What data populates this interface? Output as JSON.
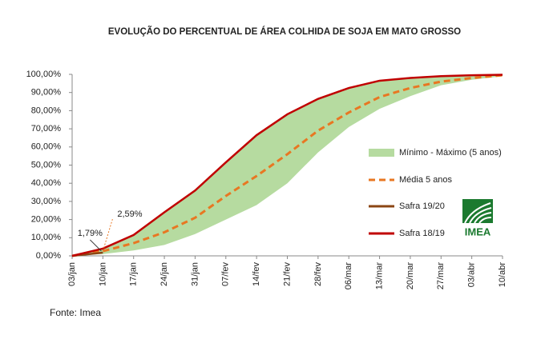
{
  "chart_data": {
    "type": "line",
    "title": "EVOLUÇÃO DO PERCENTUAL DE ÁREA COLHIDA DE SOJA EM MATO GROSSO",
    "source": "Fonte: Imea",
    "logo": "IMEA",
    "categories": [
      "03/jan",
      "10/jan",
      "17/jan",
      "24/jan",
      "31/jan",
      "07/fev",
      "14/fev",
      "21/fev",
      "28/fev",
      "06/mar",
      "13/mar",
      "20/mar",
      "27/mar",
      "03/abr",
      "10/abr"
    ],
    "ylim": [
      0,
      100
    ],
    "yticks": [
      {
        "value": 0,
        "label": "0,00%"
      },
      {
        "value": 10,
        "label": "10,00%"
      },
      {
        "value": 20,
        "label": "20,00%"
      },
      {
        "value": 30,
        "label": "30,00%"
      },
      {
        "value": 40,
        "label": "40,00%"
      },
      {
        "value": 50,
        "label": "50,00%"
      },
      {
        "value": 60,
        "label": "60,00%"
      },
      {
        "value": 70,
        "label": "70,00%"
      },
      {
        "value": 80,
        "label": "80,00%"
      },
      {
        "value": 90,
        "label": "90,00%"
      },
      {
        "value": 100,
        "label": "100,00%"
      }
    ],
    "grid": false,
    "legend": "right",
    "series": [
      {
        "name": "Mínimo - Máximo (5 anos)",
        "kind": "band",
        "color": "#b6dba0",
        "values": [
          0,
          1,
          3,
          6,
          12,
          20,
          28,
          40,
          57,
          71,
          81,
          88,
          94,
          97,
          99
        ],
        "values_upper": [
          0,
          4.2,
          11.8,
          24.3,
          36.3,
          51.8,
          66.8,
          78.3,
          86.8,
          92.8,
          96.7,
          98.2,
          99.1,
          99.6,
          99.9
        ]
      },
      {
        "name": "Média 5 anos",
        "kind": "dashed",
        "color": "#e87722",
        "values": [
          0,
          2.59,
          7,
          13,
          21,
          33,
          44,
          56,
          69,
          79,
          87.5,
          92.5,
          96,
          98,
          99.5
        ],
        "value_labels": [
          null,
          "2,59%",
          null,
          null,
          null,
          null,
          null,
          null,
          null,
          null,
          null,
          null,
          null,
          null,
          null
        ]
      },
      {
        "name": "Safra 19/20",
        "kind": "line",
        "color": "#8b4513",
        "values": [
          0,
          1.79,
          null,
          null,
          null,
          null,
          null,
          null,
          null,
          null,
          null,
          null,
          null,
          null,
          null
        ],
        "value_labels": [
          null,
          "1,79%",
          null,
          null,
          null,
          null,
          null,
          null,
          null,
          null,
          null,
          null,
          null,
          null,
          null
        ]
      },
      {
        "name": "Safra 18/19",
        "kind": "line",
        "color": "#c00000",
        "values": [
          0,
          4,
          11.5,
          24,
          36,
          51.5,
          66.5,
          78,
          86.5,
          92.5,
          96.5,
          98,
          99,
          99.5,
          99.8
        ]
      }
    ]
  }
}
